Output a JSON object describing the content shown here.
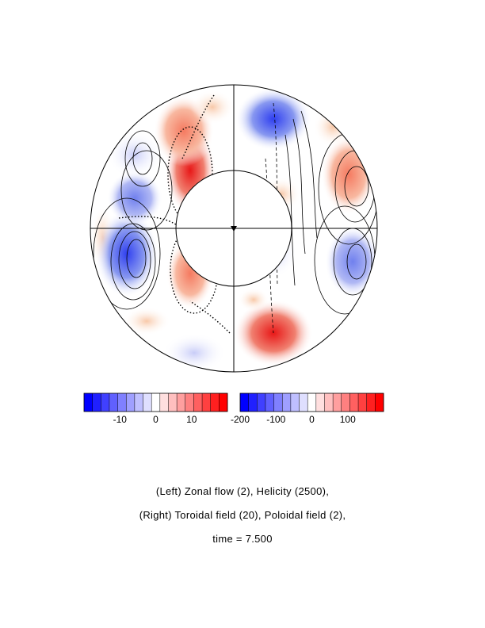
{
  "left_colorbar": {
    "ticks": [
      {
        "label": "-10",
        "value": -10
      },
      {
        "label": "0",
        "value": 0
      },
      {
        "label": "10",
        "value": 10
      }
    ],
    "range": [
      -20,
      20
    ],
    "levels": 17
  },
  "right_colorbar": {
    "ticks": [
      {
        "label": "-200",
        "value": -200
      },
      {
        "label": "-100",
        "value": -100
      },
      {
        "label": "0",
        "value": 0
      },
      {
        "label": "100",
        "value": 100
      }
    ],
    "range": [
      -200,
      200
    ],
    "levels": 17
  },
  "colors": {
    "negative_max": "#0000ff",
    "neutral": "#ffffff",
    "positive_max": "#ff0000"
  },
  "caption": {
    "line1": "(Left) Zonal flow (2), Helicity (2500),",
    "line2": "(Right) Toroidal field (20), Poloidal field (2),",
    "line3": "time = 7.500"
  }
}
